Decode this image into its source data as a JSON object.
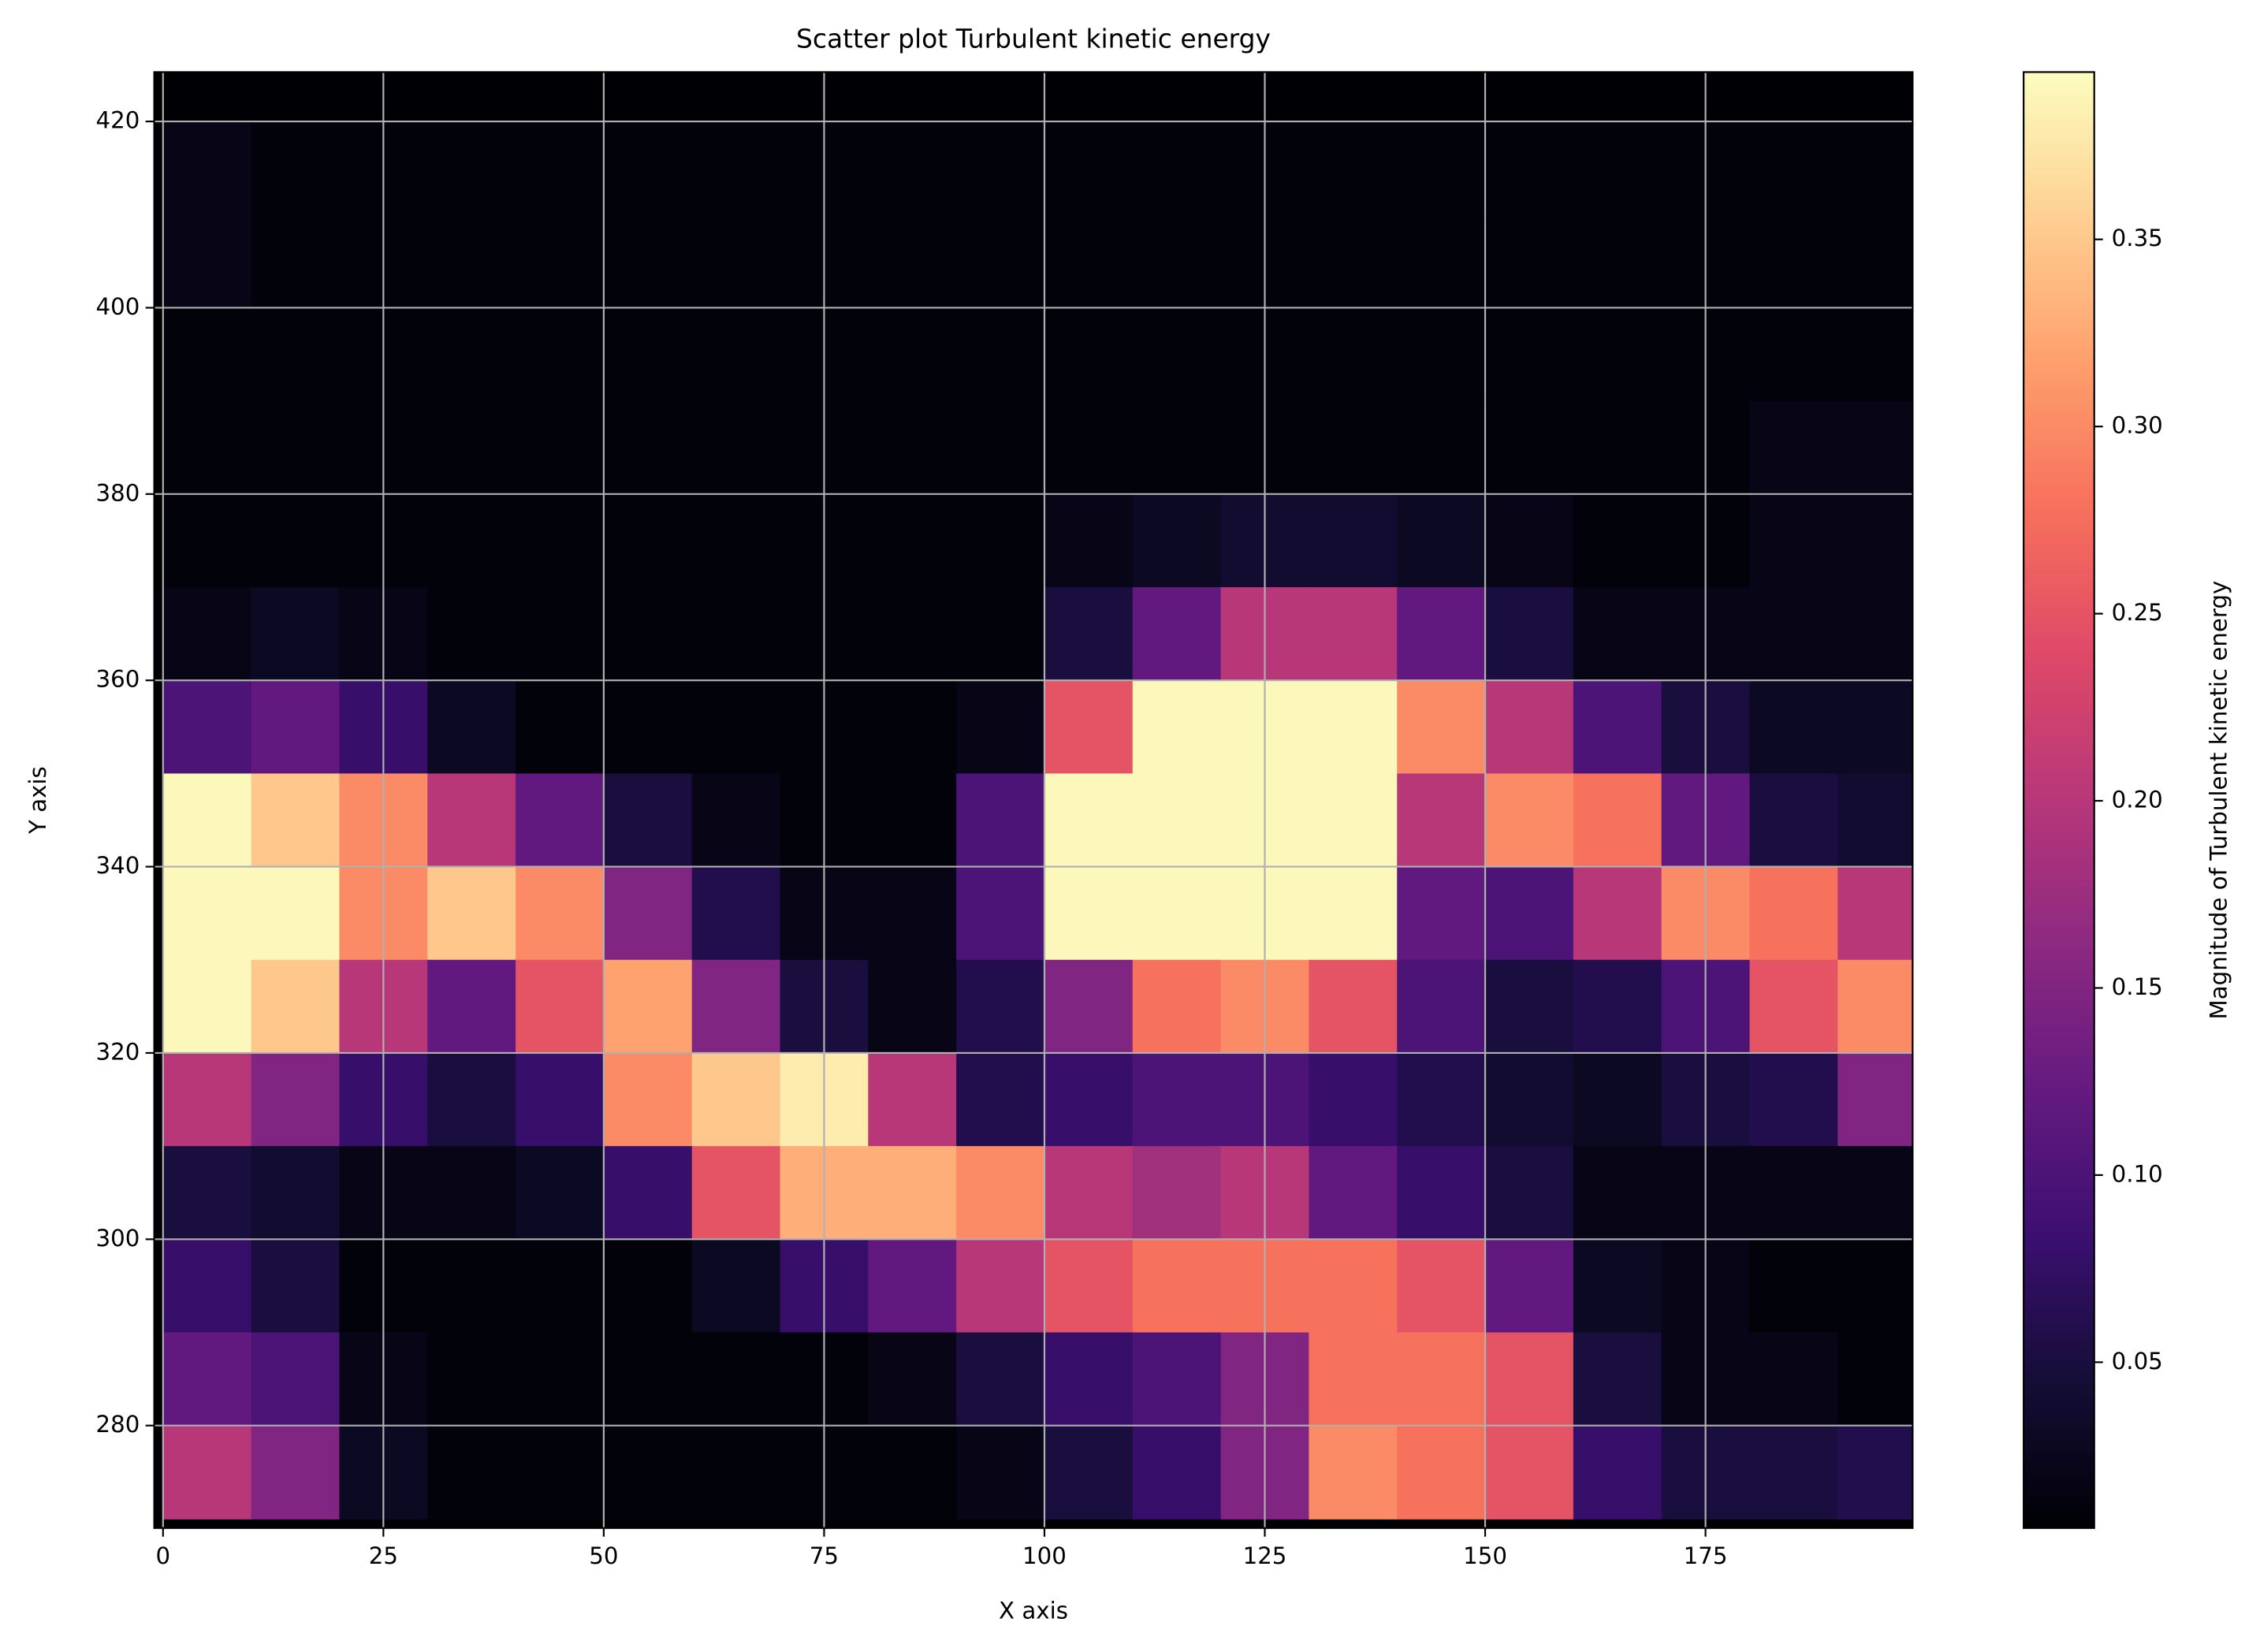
{
  "chart_data": {
    "type": "heatmap",
    "title": "Scatter plot Turbulent kinetic energy",
    "xlabel": "X axis",
    "ylabel": "Y axis",
    "colorbar_label": "Magnitude of Turbulent kinetic energy",
    "colormap": "magma",
    "grid": true,
    "x": [
      5,
      15,
      25,
      35,
      45,
      55,
      65,
      75,
      85,
      95,
      105,
      115,
      125,
      135,
      145,
      155,
      165,
      175,
      185,
      195
    ],
    "y": [
      415,
      405,
      395,
      385,
      375,
      365,
      355,
      345,
      335,
      325,
      315,
      305,
      295,
      285,
      275
    ],
    "values": [
      [
        0.02,
        0.01,
        0.01,
        0.01,
        0.01,
        0.01,
        0.01,
        0.01,
        0.01,
        0.01,
        0.01,
        0.01,
        0.01,
        0.01,
        0.01,
        0.01,
        0.01,
        0.01,
        0.01,
        0.01
      ],
      [
        0.02,
        0.01,
        0.01,
        0.01,
        0.01,
        0.01,
        0.01,
        0.01,
        0.01,
        0.01,
        0.01,
        0.01,
        0.01,
        0.01,
        0.01,
        0.01,
        0.01,
        0.01,
        0.01,
        0.01
      ],
      [
        0.01,
        0.01,
        0.01,
        0.01,
        0.01,
        0.01,
        0.01,
        0.01,
        0.01,
        0.01,
        0.01,
        0.01,
        0.01,
        0.01,
        0.01,
        0.01,
        0.01,
        0.01,
        0.01,
        0.01
      ],
      [
        0.01,
        0.01,
        0.01,
        0.01,
        0.01,
        0.01,
        0.01,
        0.01,
        0.01,
        0.01,
        0.01,
        0.01,
        0.01,
        0.01,
        0.01,
        0.01,
        0.01,
        0.01,
        0.02,
        0.02
      ],
      [
        0.01,
        0.01,
        0.01,
        0.01,
        0.01,
        0.01,
        0.01,
        0.01,
        0.01,
        0.01,
        0.02,
        0.03,
        0.04,
        0.04,
        0.03,
        0.02,
        0.01,
        0.01,
        0.02,
        0.02
      ],
      [
        0.02,
        0.03,
        0.02,
        0.01,
        0.01,
        0.01,
        0.01,
        0.01,
        0.01,
        0.01,
        0.05,
        0.12,
        0.2,
        0.2,
        0.12,
        0.05,
        0.02,
        0.02,
        0.02,
        0.02
      ],
      [
        0.1,
        0.12,
        0.08,
        0.03,
        0.01,
        0.01,
        0.01,
        0.01,
        0.01,
        0.02,
        0.25,
        0.39,
        0.39,
        0.39,
        0.3,
        0.2,
        0.1,
        0.05,
        0.03,
        0.03
      ],
      [
        0.39,
        0.35,
        0.3,
        0.2,
        0.12,
        0.05,
        0.02,
        0.01,
        0.01,
        0.1,
        0.39,
        0.39,
        0.39,
        0.39,
        0.2,
        0.3,
        0.28,
        0.12,
        0.05,
        0.04
      ],
      [
        0.39,
        0.39,
        0.3,
        0.35,
        0.3,
        0.15,
        0.06,
        0.02,
        0.02,
        0.1,
        0.39,
        0.39,
        0.39,
        0.39,
        0.12,
        0.1,
        0.2,
        0.3,
        0.28,
        0.2
      ],
      [
        0.39,
        0.35,
        0.2,
        0.12,
        0.25,
        0.32,
        0.15,
        0.05,
        0.02,
        0.06,
        0.15,
        0.28,
        0.3,
        0.25,
        0.1,
        0.05,
        0.06,
        0.1,
        0.25,
        0.3
      ],
      [
        0.2,
        0.15,
        0.08,
        0.05,
        0.08,
        0.3,
        0.35,
        0.38,
        0.2,
        0.06,
        0.08,
        0.1,
        0.1,
        0.08,
        0.06,
        0.04,
        0.03,
        0.05,
        0.06,
        0.15
      ],
      [
        0.05,
        0.04,
        0.02,
        0.02,
        0.03,
        0.08,
        0.25,
        0.33,
        0.33,
        0.3,
        0.2,
        0.18,
        0.2,
        0.12,
        0.08,
        0.05,
        0.02,
        0.02,
        0.02,
        0.02
      ],
      [
        0.08,
        0.05,
        0.01,
        0.01,
        0.01,
        0.01,
        0.03,
        0.08,
        0.12,
        0.2,
        0.25,
        0.28,
        0.28,
        0.28,
        0.25,
        0.12,
        0.03,
        0.02,
        0.01,
        0.01
      ],
      [
        0.12,
        0.1,
        0.02,
        0.01,
        0.01,
        0.01,
        0.01,
        0.01,
        0.02,
        0.05,
        0.08,
        0.1,
        0.15,
        0.28,
        0.28,
        0.25,
        0.05,
        0.02,
        0.02,
        0.01
      ],
      [
        0.2,
        0.15,
        0.03,
        0.01,
        0.01,
        0.01,
        0.01,
        0.01,
        0.01,
        0.02,
        0.05,
        0.08,
        0.15,
        0.3,
        0.28,
        0.25,
        0.08,
        0.05,
        0.05,
        0.06
      ]
    ],
    "xlim": [
      -1,
      198.5
    ],
    "ylim": [
      269,
      425.3
    ],
    "xticks": [
      0,
      25,
      50,
      75,
      100,
      125,
      150,
      175
    ],
    "yticks": [
      280,
      300,
      320,
      340,
      360,
      380,
      400,
      420
    ],
    "clim": [
      0.0057,
      0.3947
    ],
    "cticks": [
      0.05,
      {
        "value": 0.1,
        "label": "0.10"
      },
      0.15,
      {
        "value": 0.2,
        "label": "0.20"
      },
      0.25,
      {
        "value": 0.3,
        "label": "0.30"
      },
      0.35
    ]
  }
}
